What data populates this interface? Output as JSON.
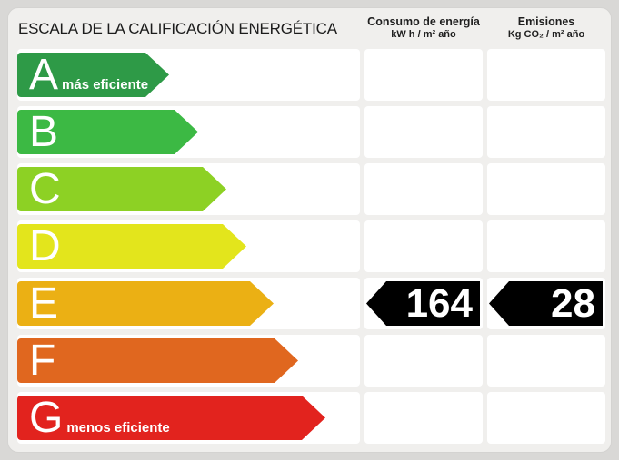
{
  "title": "ESCALA DE LA CALIFICACIÓN ENERGÉTICA",
  "columns": {
    "consumo": {
      "label": "Consumo de energía",
      "unit": "kW h / m² año"
    },
    "emisiones": {
      "label": "Emisiones",
      "unit": "Kg CO₂ / m² año"
    }
  },
  "scale": {
    "ratings": [
      {
        "letter": "A",
        "note": "más eficiente",
        "color": "#2e9a47"
      },
      {
        "letter": "B",
        "note": "",
        "color": "#3cb944"
      },
      {
        "letter": "C",
        "note": "",
        "color": "#8dd124"
      },
      {
        "letter": "D",
        "note": "",
        "color": "#e3e51c"
      },
      {
        "letter": "E",
        "note": "",
        "color": "#ebb014"
      },
      {
        "letter": "F",
        "note": "",
        "color": "#e0671f"
      },
      {
        "letter": "G",
        "note": "menos eficiente",
        "color": "#e2231e"
      }
    ]
  },
  "result": {
    "rating": "E",
    "consumo_value": "164",
    "emisiones_value": "28",
    "marker_color": "#000000",
    "value_text_color": "#ffffff"
  },
  "chart_data": {
    "type": "bar",
    "title": "ESCALA DE LA CALIFICACIÓN ENERGÉTICA",
    "categories": [
      "A",
      "B",
      "C",
      "D",
      "E",
      "F",
      "G"
    ],
    "category_colors": [
      "#2e9a47",
      "#3cb944",
      "#8dd124",
      "#e3e51c",
      "#ebb014",
      "#e0671f",
      "#e2231e"
    ],
    "selected_rating": "E",
    "series": [
      {
        "name": "Consumo de energía (kW h / m² año)",
        "values": [
          null,
          null,
          null,
          null,
          164,
          null,
          null
        ]
      },
      {
        "name": "Emisiones (Kg CO₂ / m² año)",
        "values": [
          null,
          null,
          null,
          null,
          28,
          null,
          null
        ]
      }
    ],
    "annotations": [
      "A = más eficiente",
      "G = menos eficiente"
    ]
  }
}
